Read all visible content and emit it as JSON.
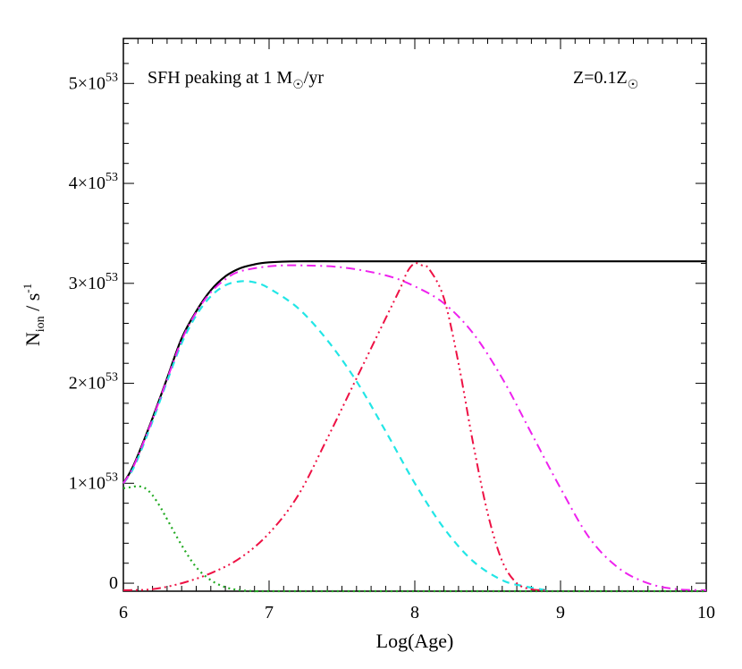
{
  "chart_data": {
    "type": "line",
    "title": "",
    "xlabel": "Log(Age)",
    "ylabel": {
      "main": "N",
      "sub": "ion",
      "rest": " / s",
      "sup": "-1"
    },
    "xlim": [
      6,
      10
    ],
    "ylim": [
      -0.08,
      5.45
    ],
    "y_unit_exp": 53,
    "x_ticks": [
      "6",
      "7",
      "8",
      "9",
      "10"
    ],
    "y_ticks": [
      {
        "value": 0,
        "mantissa": "0",
        "times": "",
        "exp": ""
      },
      {
        "value": 1,
        "mantissa": "1",
        "times": "×10",
        "exp": "53"
      },
      {
        "value": 2,
        "mantissa": "2",
        "times": "×10",
        "exp": "53"
      },
      {
        "value": 3,
        "mantissa": "3",
        "times": "×10",
        "exp": "53"
      },
      {
        "value": 4,
        "mantissa": "4",
        "times": "×10",
        "exp": "53"
      },
      {
        "value": 5,
        "mantissa": "5",
        "times": "×10",
        "exp": "53"
      }
    ],
    "grid": false,
    "annotations": {
      "sfh": {
        "pre": "SFH peaking at 1 M",
        "sym": "☉",
        "post": "/yr"
      },
      "metal": {
        "pre": "Z=0.1Z",
        "sym": "☉"
      }
    },
    "series": [
      {
        "color": "#000000",
        "dash": "",
        "width": 2.2,
        "x": [
          6.0,
          6.05,
          6.1,
          6.2,
          6.3,
          6.4,
          6.5,
          6.6,
          6.7,
          6.8,
          6.9,
          7.0,
          7.2,
          7.5,
          8.0,
          9.0,
          10.0
        ],
        "y": [
          1.0,
          1.12,
          1.28,
          1.65,
          2.05,
          2.45,
          2.72,
          2.93,
          3.07,
          3.15,
          3.19,
          3.21,
          3.22,
          3.22,
          3.22,
          3.22,
          3.22
        ]
      },
      {
        "color": "#22e6e6",
        "dash": "8,6",
        "width": 2.2,
        "x": [
          6.0,
          6.05,
          6.1,
          6.2,
          6.3,
          6.4,
          6.5,
          6.6,
          6.7,
          6.8,
          6.9,
          7.0,
          7.2,
          7.4,
          7.6,
          7.8,
          8.0,
          8.2,
          8.4,
          8.6,
          8.75,
          8.9
        ],
        "y": [
          1.0,
          1.1,
          1.25,
          1.62,
          2.02,
          2.4,
          2.68,
          2.87,
          2.98,
          3.02,
          3.01,
          2.95,
          2.75,
          2.43,
          2.02,
          1.52,
          1.0,
          0.55,
          0.22,
          0.03,
          -0.03,
          -0.07
        ]
      },
      {
        "color": "#ee22ee",
        "dash": "10,5,2,5",
        "width": 2.0,
        "x": [
          6.0,
          6.05,
          6.1,
          6.2,
          6.3,
          6.4,
          6.5,
          6.6,
          6.7,
          6.8,
          7.0,
          7.2,
          7.5,
          7.8,
          8.0,
          8.2,
          8.4,
          8.6,
          8.8,
          9.0,
          9.2,
          9.4,
          9.6,
          9.8,
          10.0
        ],
        "y": [
          1.0,
          1.11,
          1.27,
          1.64,
          2.04,
          2.43,
          2.71,
          2.91,
          3.04,
          3.12,
          3.17,
          3.18,
          3.16,
          3.08,
          2.97,
          2.8,
          2.5,
          2.05,
          1.5,
          0.95,
          0.45,
          0.15,
          0.0,
          -0.06,
          -0.07
        ]
      },
      {
        "color": "#ee1144",
        "dash": "10,4,2,4,2,4,2,4",
        "width": 2.0,
        "x": [
          6.0,
          6.2,
          6.4,
          6.6,
          6.8,
          7.0,
          7.2,
          7.4,
          7.6,
          7.8,
          7.9,
          7.95,
          8.0,
          8.05,
          8.1,
          8.2,
          8.3,
          8.4,
          8.5,
          8.6,
          8.7,
          8.8,
          8.9
        ],
        "y": [
          -0.07,
          -0.06,
          0.0,
          0.1,
          0.25,
          0.5,
          0.88,
          1.45,
          2.05,
          2.65,
          2.95,
          3.12,
          3.2,
          3.18,
          3.14,
          2.85,
          2.2,
          1.4,
          0.7,
          0.22,
          0.0,
          -0.06,
          -0.07
        ]
      },
      {
        "color": "#22aa22",
        "dash": "2,4",
        "width": 2.2,
        "x": [
          6.0,
          6.05,
          6.1,
          6.15,
          6.2,
          6.25,
          6.3,
          6.4,
          6.5,
          6.6,
          6.7,
          6.8,
          6.9,
          7.0,
          8.0,
          9.0,
          10.0
        ],
        "y": [
          0.95,
          0.96,
          0.97,
          0.95,
          0.88,
          0.77,
          0.64,
          0.38,
          0.16,
          0.03,
          -0.04,
          -0.07,
          -0.08,
          -0.08,
          -0.08,
          -0.08,
          -0.08
        ]
      }
    ]
  }
}
